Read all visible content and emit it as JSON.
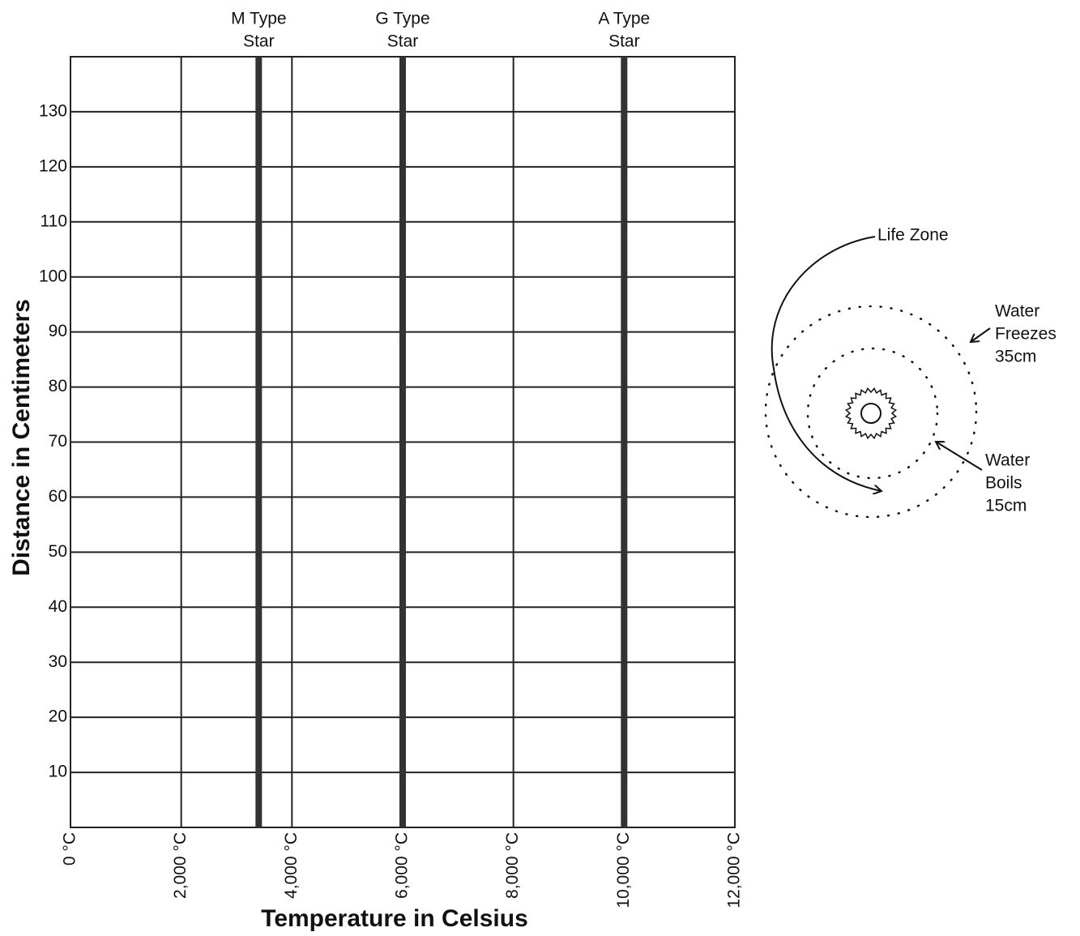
{
  "chart_data": {
    "type": "reference-lines",
    "x_label": "Temperature in Celsius",
    "y_label": "Distance in Centimeters",
    "xlim": [
      0,
      12000
    ],
    "xticks": [
      {
        "value": 0,
        "label": "0 °C"
      },
      {
        "value": 2000,
        "label": "2,000 °C"
      },
      {
        "value": 4000,
        "label": "4,000 °C"
      },
      {
        "value": 6000,
        "label": "6,000 °C"
      },
      {
        "value": 8000,
        "label": "8,000 °C"
      },
      {
        "value": 10000,
        "label": "10,000 °C"
      },
      {
        "value": 12000,
        "label": "12,000 °C"
      }
    ],
    "ylim": [
      0,
      140
    ],
    "yticks": [
      10,
      20,
      30,
      40,
      50,
      60,
      70,
      80,
      90,
      100,
      110,
      120,
      130
    ],
    "grid": true,
    "color": "#333333",
    "lines": [
      {
        "label": [
          "M Type",
          "Star"
        ],
        "x": 3400
      },
      {
        "label": [
          "G Type",
          "Star"
        ],
        "x": 6000
      },
      {
        "label": [
          "A Type",
          "Star"
        ],
        "x": 10000
      }
    ]
  },
  "diagram": {
    "life_zone": "Life Zone",
    "freezes": [
      "Water",
      "Freezes",
      "35cm"
    ],
    "boils": [
      "Water",
      "Boils",
      "15cm"
    ]
  }
}
